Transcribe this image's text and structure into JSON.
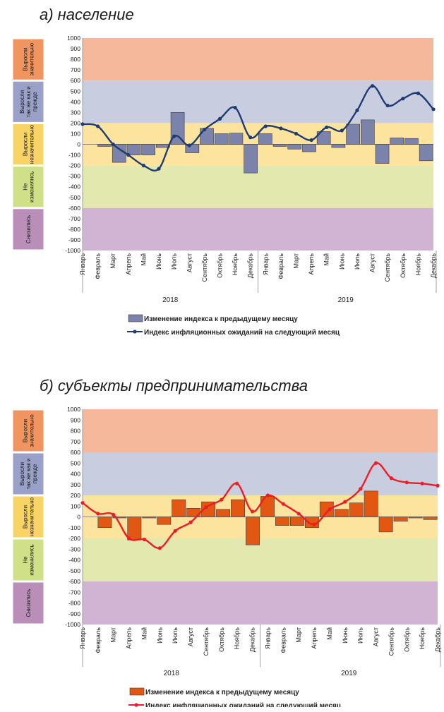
{
  "colors": {
    "zone_top": "#f5b89a",
    "zone_blue": "#c9cde0",
    "zone_yellow": "#fde49e",
    "zone_green": "#e2e8ae",
    "zone_purple": "#d1b4d3",
    "label_top": "#f0955f",
    "label_blue": "#9aa1c8",
    "label_yellow": "#f8d368",
    "label_green": "#cfe089",
    "label_purple": "#b98fba",
    "bars_a": "#7b83aa",
    "line_a": "#1f3b73",
    "bars_b": "#e25712",
    "line_b": "#ee1c25"
  },
  "chart_data": [
    {
      "type": "bar",
      "title": "а) население",
      "ylim": [
        -1000,
        1000
      ],
      "yticks": [
        1000,
        900,
        800,
        700,
        600,
        500,
        400,
        300,
        200,
        100,
        0,
        -100,
        -200,
        -300,
        -400,
        -500,
        -600,
        -700,
        -800,
        -900,
        -1000
      ],
      "zone_labels": [
        "Выросли значительно",
        "Выросли так же как и прежде",
        "Выросли незначительно",
        "Не изменились",
        "Снизились"
      ],
      "zone_bounds": [
        [
          600,
          1000
        ],
        [
          200,
          600
        ],
        [
          -200,
          200
        ],
        [
          -600,
          -200
        ],
        [
          -1000,
          -600
        ]
      ],
      "categories": [
        "Январь",
        "Февраль",
        "Март",
        "Апрель",
        "Май",
        "Июнь",
        "Июль",
        "Август",
        "Сентябрь",
        "Октябрь",
        "Ноябрь",
        "Декабрь",
        "Январь",
        "Февраль",
        "Март",
        "Апрель",
        "Май",
        "Июнь",
        "Июль",
        "Август",
        "Сентябрь",
        "Октябрь",
        "Ноябрь",
        "Декабрь"
      ],
      "years": [
        "2018",
        "2019"
      ],
      "series": [
        {
          "name": "Изменение индекса к предыдущему месяцу",
          "kind": "bar",
          "values": [
            0,
            -20,
            -170,
            -100,
            -100,
            -30,
            300,
            -80,
            150,
            100,
            105,
            -270,
            100,
            -20,
            -45,
            -70,
            120,
            -30,
            190,
            230,
            -180,
            60,
            55,
            -155
          ]
        },
        {
          "name": "Индекс инфляционных ожиданий на следующий месяц",
          "kind": "line",
          "values": [
            190,
            170,
            0,
            -100,
            -200,
            -230,
            75,
            -10,
            140,
            240,
            345,
            65,
            170,
            150,
            100,
            40,
            160,
            130,
            320,
            550,
            365,
            430,
            480,
            330
          ]
        }
      ]
    },
    {
      "type": "bar",
      "title": "б) субъекты предпринимательства",
      "ylim": [
        -1000,
        1000
      ],
      "yticks": [
        1000,
        900,
        800,
        700,
        600,
        500,
        400,
        300,
        200,
        100,
        0,
        -100,
        -200,
        -300,
        -400,
        -500,
        -600,
        -700,
        -800,
        -900,
        -1000
      ],
      "zone_labels": [
        "Выросли значительно",
        "Выросли так же как и прежде",
        "Выросли незначительно",
        "Не изменились",
        "Снизились"
      ],
      "zone_bounds": [
        [
          600,
          1000
        ],
        [
          200,
          600
        ],
        [
          -200,
          200
        ],
        [
          -600,
          -200
        ],
        [
          -1000,
          -600
        ]
      ],
      "categories": [
        "Январь",
        "Февраль",
        "Март",
        "Апрель",
        "Май",
        "Июнь",
        "Июль",
        "Август",
        "Сентябрь",
        "Октябрь",
        "Ноябрь",
        "Декабрь",
        "Январь",
        "Февраль",
        "Март",
        "Апрель",
        "Май",
        "Июнь",
        "Июль",
        "Август",
        "Сентябрь",
        "Октябрь",
        "Ноябрь",
        "Декабрь"
      ],
      "years": [
        "2018",
        "2019"
      ],
      "series": [
        {
          "name": "Изменение индекса к предыдущему месяцу",
          "kind": "bar",
          "values": [
            0,
            -100,
            -10,
            -215,
            -10,
            -70,
            160,
            80,
            140,
            70,
            160,
            -260,
            190,
            -80,
            -80,
            -100,
            140,
            70,
            130,
            240,
            -140,
            -40,
            -10,
            -25
          ]
        },
        {
          "name": "Индекс инфляционных ожиданий на следующий месяц",
          "kind": "line",
          "values": [
            130,
            30,
            20,
            -200,
            -210,
            -290,
            -130,
            -50,
            90,
            160,
            310,
            50,
            200,
            120,
            30,
            -70,
            70,
            140,
            260,
            500,
            360,
            320,
            310,
            290
          ]
        }
      ]
    }
  ]
}
